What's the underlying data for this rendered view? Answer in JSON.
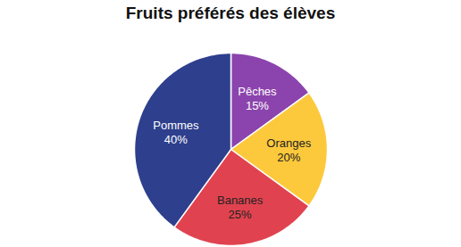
{
  "chart_data": {
    "type": "pie",
    "title": "Fruits préférés des élèves",
    "categories": [
      "Pêches",
      "Oranges",
      "Bananes",
      "Pommes"
    ],
    "values": [
      15,
      20,
      25,
      40
    ],
    "value_labels": [
      "15%",
      "20%",
      "25%",
      "40%"
    ],
    "colors": [
      "#8b44ad",
      "#fdc93c",
      "#e0434f",
      "#2e3f8d"
    ],
    "data_labels": true
  }
}
